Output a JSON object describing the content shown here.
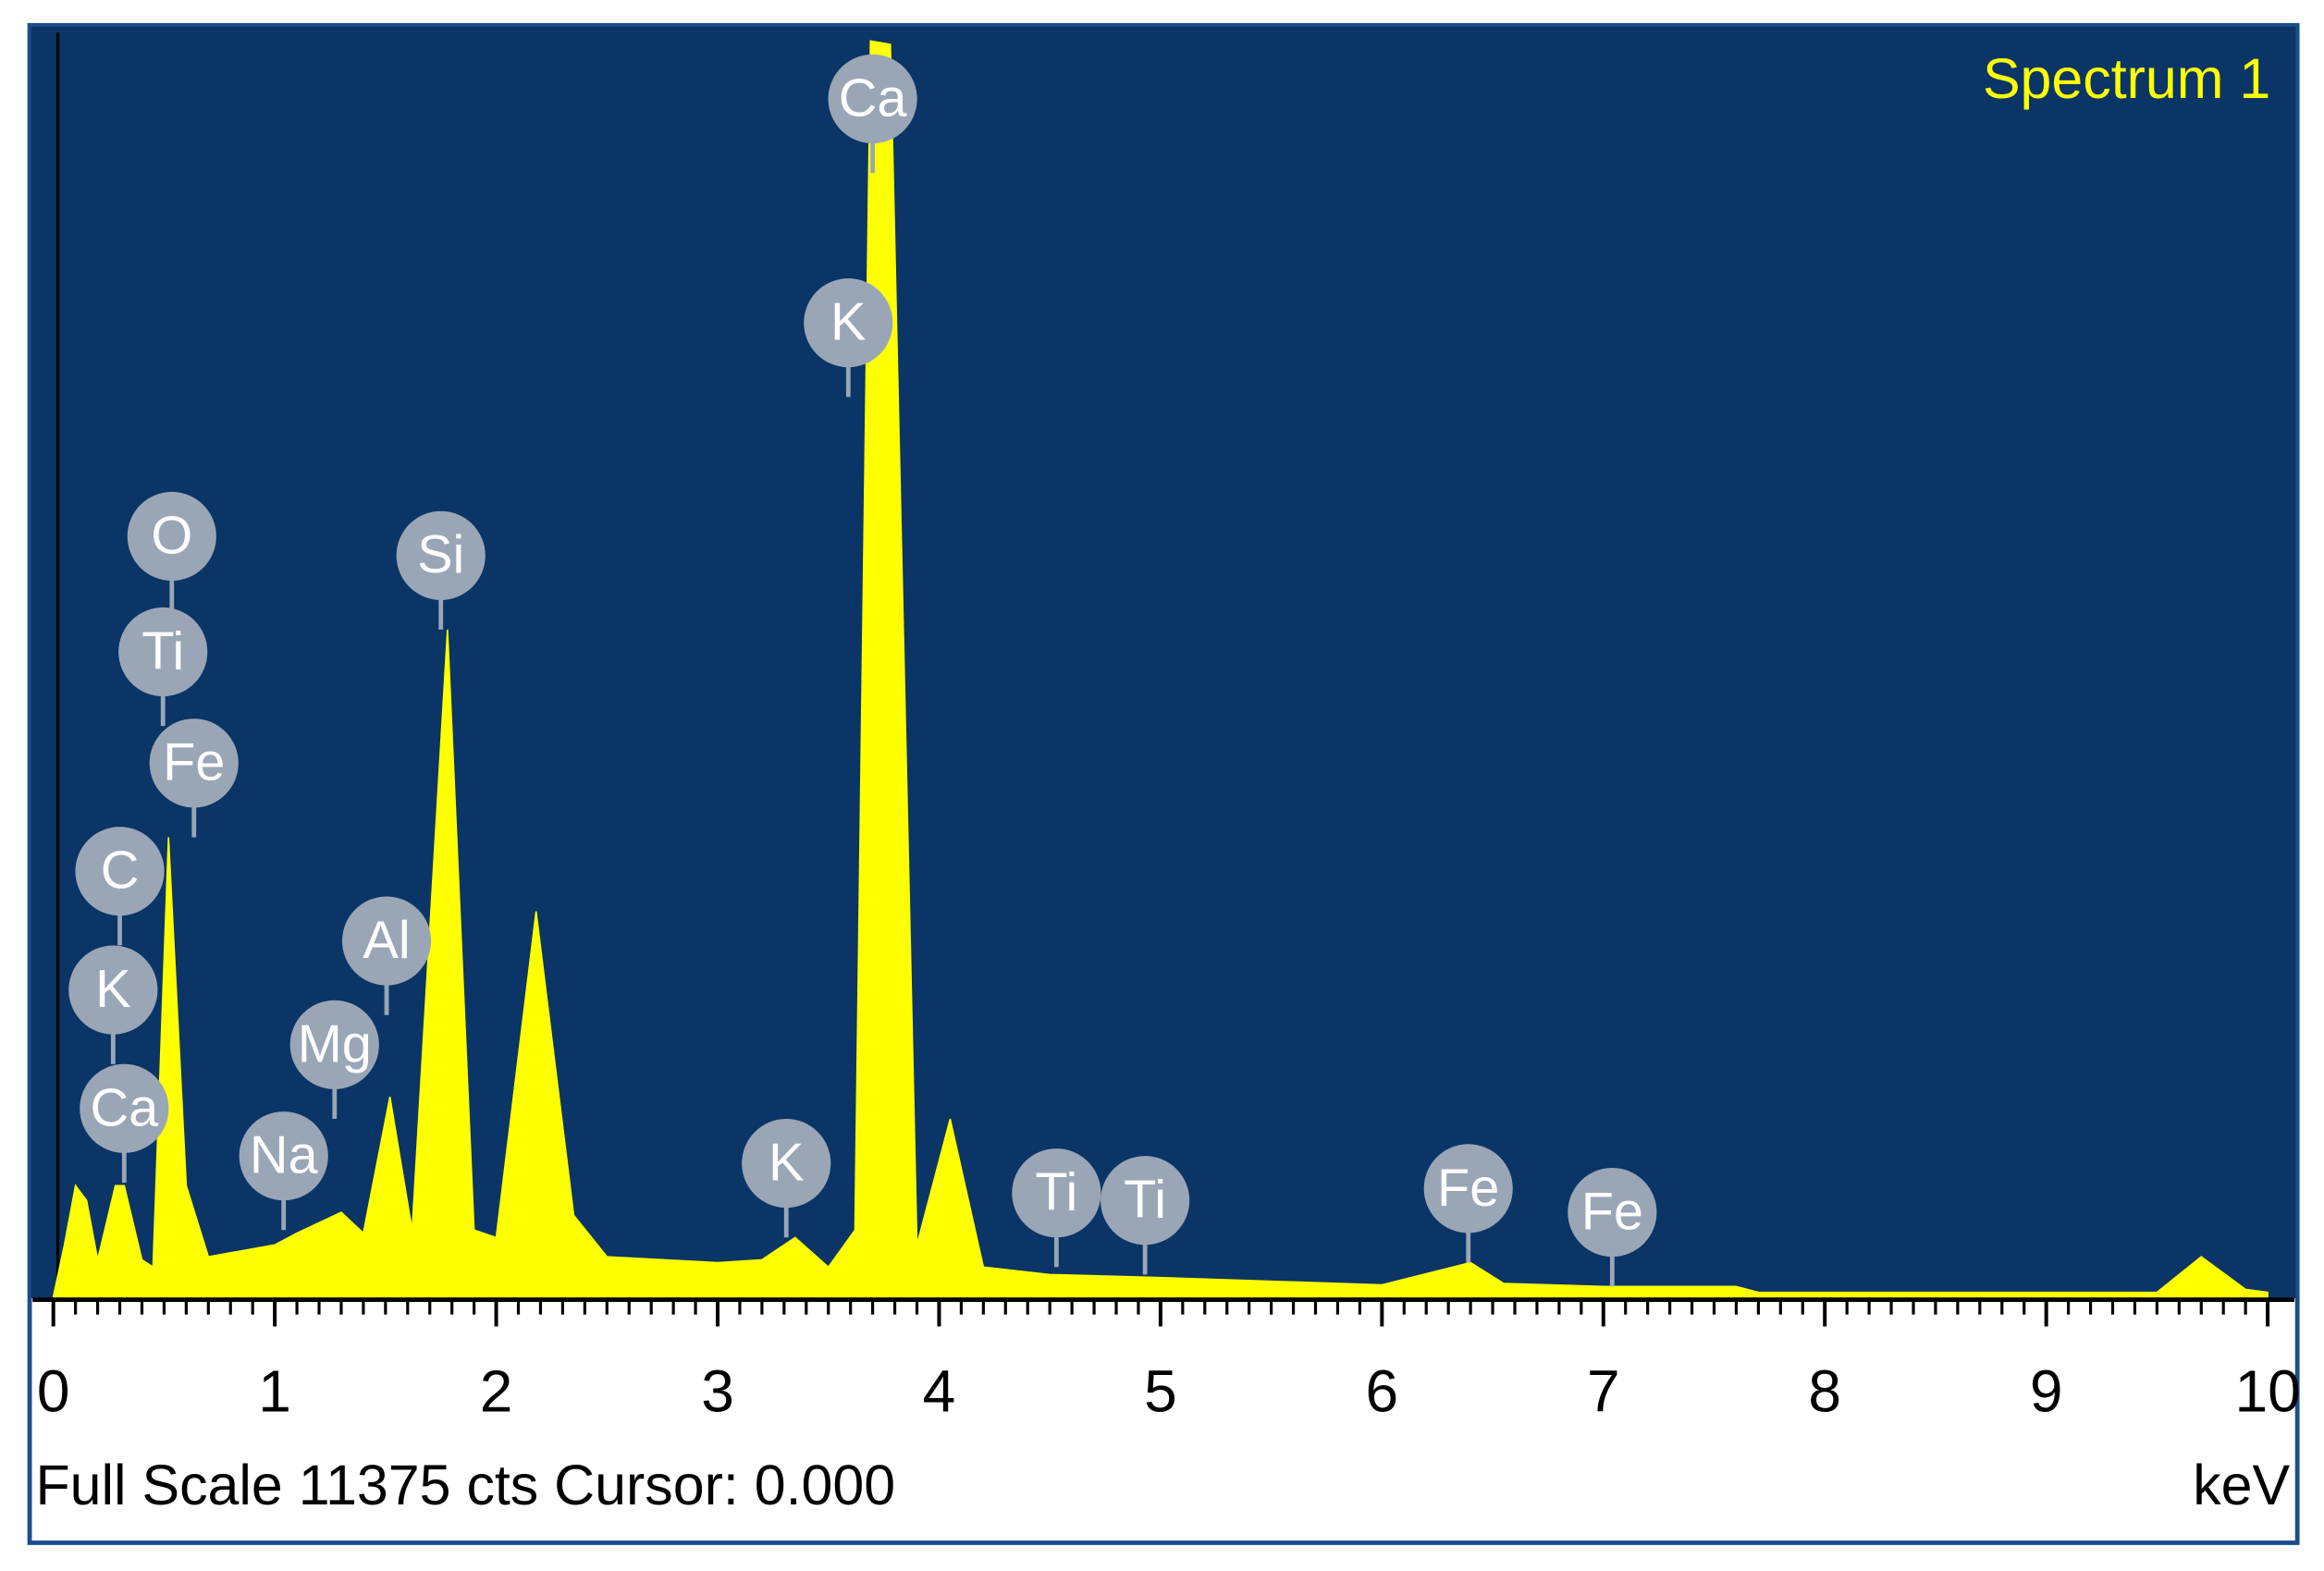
{
  "chart_data": {
    "type": "area",
    "x": [
      0.0,
      0.05,
      0.1,
      0.15,
      0.2,
      0.28,
      0.32,
      0.4,
      0.45,
      0.52,
      0.6,
      0.7,
      1.0,
      1.1,
      1.3,
      1.4,
      1.52,
      1.62,
      1.78,
      1.9,
      2.0,
      2.18,
      2.35,
      2.5,
      3.0,
      3.2,
      3.35,
      3.5,
      3.62,
      3.69,
      3.78,
      3.9,
      4.05,
      4.2,
      4.5,
      5.0,
      6.0,
      6.4,
      6.55,
      7.0,
      7.6,
      7.7,
      9.5,
      9.7,
      9.9,
      10.0
    ],
    "series": [
      {
        "name": "Spectrum 1",
        "color": "#ffff00",
        "values": [
          0,
          467,
          1000,
          867,
          333,
          1000,
          1000,
          333,
          267,
          4135,
          1000,
          360,
          467,
          573,
          760,
          573,
          1800,
          600,
          6003,
          600,
          533,
          3468,
          733,
          360,
          307,
          333,
          533,
          267,
          600,
          11300,
          11270,
          467,
          1600,
          267,
          200,
          173,
          107,
          307,
          120,
          93,
          93,
          40,
          40,
          360,
          67,
          40
        ]
      }
    ],
    "xlim": [
      0,
      10
    ],
    "ylim": [
      0,
      11375
    ],
    "xticks": [
      0,
      1,
      2,
      3,
      4,
      5,
      6,
      7,
      8,
      9,
      10
    ],
    "xminorticks": [
      0.1,
      0.2,
      0.3,
      0.4,
      0.5,
      0.6,
      0.7,
      0.8,
      0.9,
      1.1,
      1.2,
      1.3,
      1.4,
      1.5,
      1.6,
      1.7,
      1.8,
      1.9,
      2.1,
      2.2,
      2.3,
      2.4,
      2.5,
      2.6,
      2.7,
      2.8,
      2.9,
      3.1,
      3.2,
      3.3,
      3.4,
      3.5,
      3.6,
      3.7,
      3.8,
      3.9,
      4.1,
      4.2,
      4.3,
      4.4,
      4.5,
      4.6,
      4.7,
      4.8,
      4.9,
      5.1,
      5.2,
      5.3,
      5.4,
      5.5,
      5.6,
      5.7,
      5.8,
      5.9,
      6.1,
      6.2,
      6.3,
      6.4,
      6.5,
      6.6,
      6.7,
      6.8,
      6.9,
      7.1,
      7.2,
      7.3,
      7.4,
      7.5,
      7.6,
      7.7,
      7.8,
      7.9,
      8.1,
      8.2,
      8.3,
      8.4,
      8.5,
      8.6,
      8.7,
      8.8,
      8.9,
      9.1,
      9.2,
      9.3,
      9.4,
      9.5,
      9.6,
      9.7,
      9.8,
      9.9
    ],
    "xlabel": "keV",
    "footer": "Full Scale 11375 cts Cursor: 0.000",
    "background": "#0a3566",
    "peak_labels": [
      {
        "label": "Ca",
        "x": 3.7,
        "y": 10779
      },
      {
        "label": "K",
        "x": 3.59,
        "y": 8764
      },
      {
        "label": "O",
        "x": 0.535,
        "y": 6843
      },
      {
        "label": "Si",
        "x": 1.75,
        "y": 6670
      },
      {
        "label": "Ti",
        "x": 0.495,
        "y": 5803
      },
      {
        "label": "Fe",
        "x": 0.635,
        "y": 4802
      },
      {
        "label": "C",
        "x": 0.3,
        "y": 3829
      },
      {
        "label": "Al",
        "x": 1.505,
        "y": 3202
      },
      {
        "label": "K",
        "x": 0.27,
        "y": 2761
      },
      {
        "label": "Mg",
        "x": 1.27,
        "y": 2268
      },
      {
        "label": "Ca",
        "x": 0.32,
        "y": 1694
      },
      {
        "label": "Na",
        "x": 1.04,
        "y": 1267
      },
      {
        "label": "K",
        "x": 3.31,
        "y": 1201
      },
      {
        "label": "Ti",
        "x": 4.53,
        "y": 934
      },
      {
        "label": "Ti",
        "x": 4.93,
        "y": 867
      },
      {
        "label": "Fe",
        "x": 6.39,
        "y": 974
      },
      {
        "label": "Fe",
        "x": 7.04,
        "y": 760
      }
    ]
  }
}
